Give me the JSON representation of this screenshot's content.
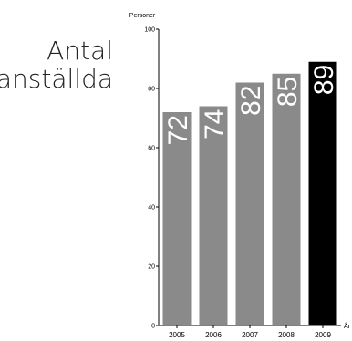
{
  "title": {
    "line1": "Antal",
    "line2": "anställda"
  },
  "chart_data": {
    "type": "bar",
    "categories": [
      "2005",
      "2006",
      "2007",
      "2008",
      "2009"
    ],
    "values": [
      72,
      74,
      82,
      85,
      89
    ],
    "data_labels": [
      "72",
      "74",
      "82",
      "85",
      "89"
    ],
    "ylabel": "Personer",
    "xlabel": "År",
    "ylim": [
      0,
      100
    ],
    "yticks": [
      0,
      20,
      40,
      60,
      80,
      100
    ],
    "ytick_labels": [
      "0",
      "20",
      "40",
      "60",
      "80",
      "100"
    ],
    "grid": false,
    "legend": "none",
    "colors": {
      "default_bar": "#8a8a8a",
      "highlight_bar": "#000000",
      "label_text": "#ffffff",
      "axis": "#000000"
    },
    "highlight_index": 4
  }
}
